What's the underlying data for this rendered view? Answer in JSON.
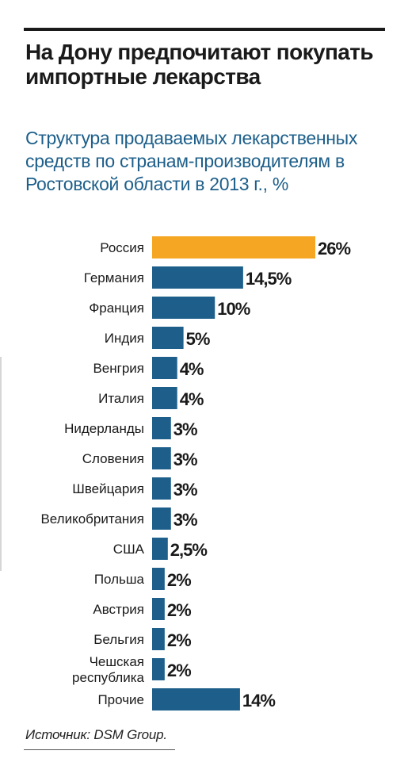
{
  "header": {
    "title": "На Дону предпочитают покупать импортные лекарства",
    "subtitle": "Структура продаваемых лекарственных средств по странам-производителям в Ростовской области в 2013 г., %"
  },
  "chart_data": {
    "type": "bar",
    "orientation": "horizontal",
    "categories": [
      "Россия",
      "Германия",
      "Франция",
      "Индия",
      "Венгрия",
      "Италия",
      "Нидерланды",
      "Словения",
      "Швейцария",
      "Великобритания",
      "США",
      "Польша",
      "Австрия",
      "Бельгия",
      "Чешская республика",
      "Прочие"
    ],
    "category_lines": [
      [
        "Россия"
      ],
      [
        "Германия"
      ],
      [
        "Франция"
      ],
      [
        "Индия"
      ],
      [
        "Венгрия"
      ],
      [
        "Италия"
      ],
      [
        "Нидерланды"
      ],
      [
        "Словения"
      ],
      [
        "Швейцария"
      ],
      [
        "Великобритания"
      ],
      [
        "США"
      ],
      [
        "Польша"
      ],
      [
        "Австрия"
      ],
      [
        "Бельгия"
      ],
      [
        "Чешская",
        "республика"
      ],
      [
        "Прочие"
      ]
    ],
    "values": [
      26,
      14.5,
      10,
      5,
      4,
      4,
      3,
      3,
      3,
      3,
      2.5,
      2,
      2,
      2,
      2,
      14
    ],
    "value_labels": [
      "26%",
      "14,5%",
      "10%",
      "5%",
      "4%",
      "4%",
      "3%",
      "3%",
      "3%",
      "3%",
      "2,5%",
      "2%",
      "2%",
      "2%",
      "2%",
      "14%"
    ],
    "highlight_index": 0,
    "colors": {
      "highlight": "#f5a623",
      "default": "#1d5f8a"
    },
    "xlim": [
      0,
      26
    ],
    "grid": false,
    "legend": "none"
  },
  "footer": {
    "source": "Источник: DSM Group."
  }
}
